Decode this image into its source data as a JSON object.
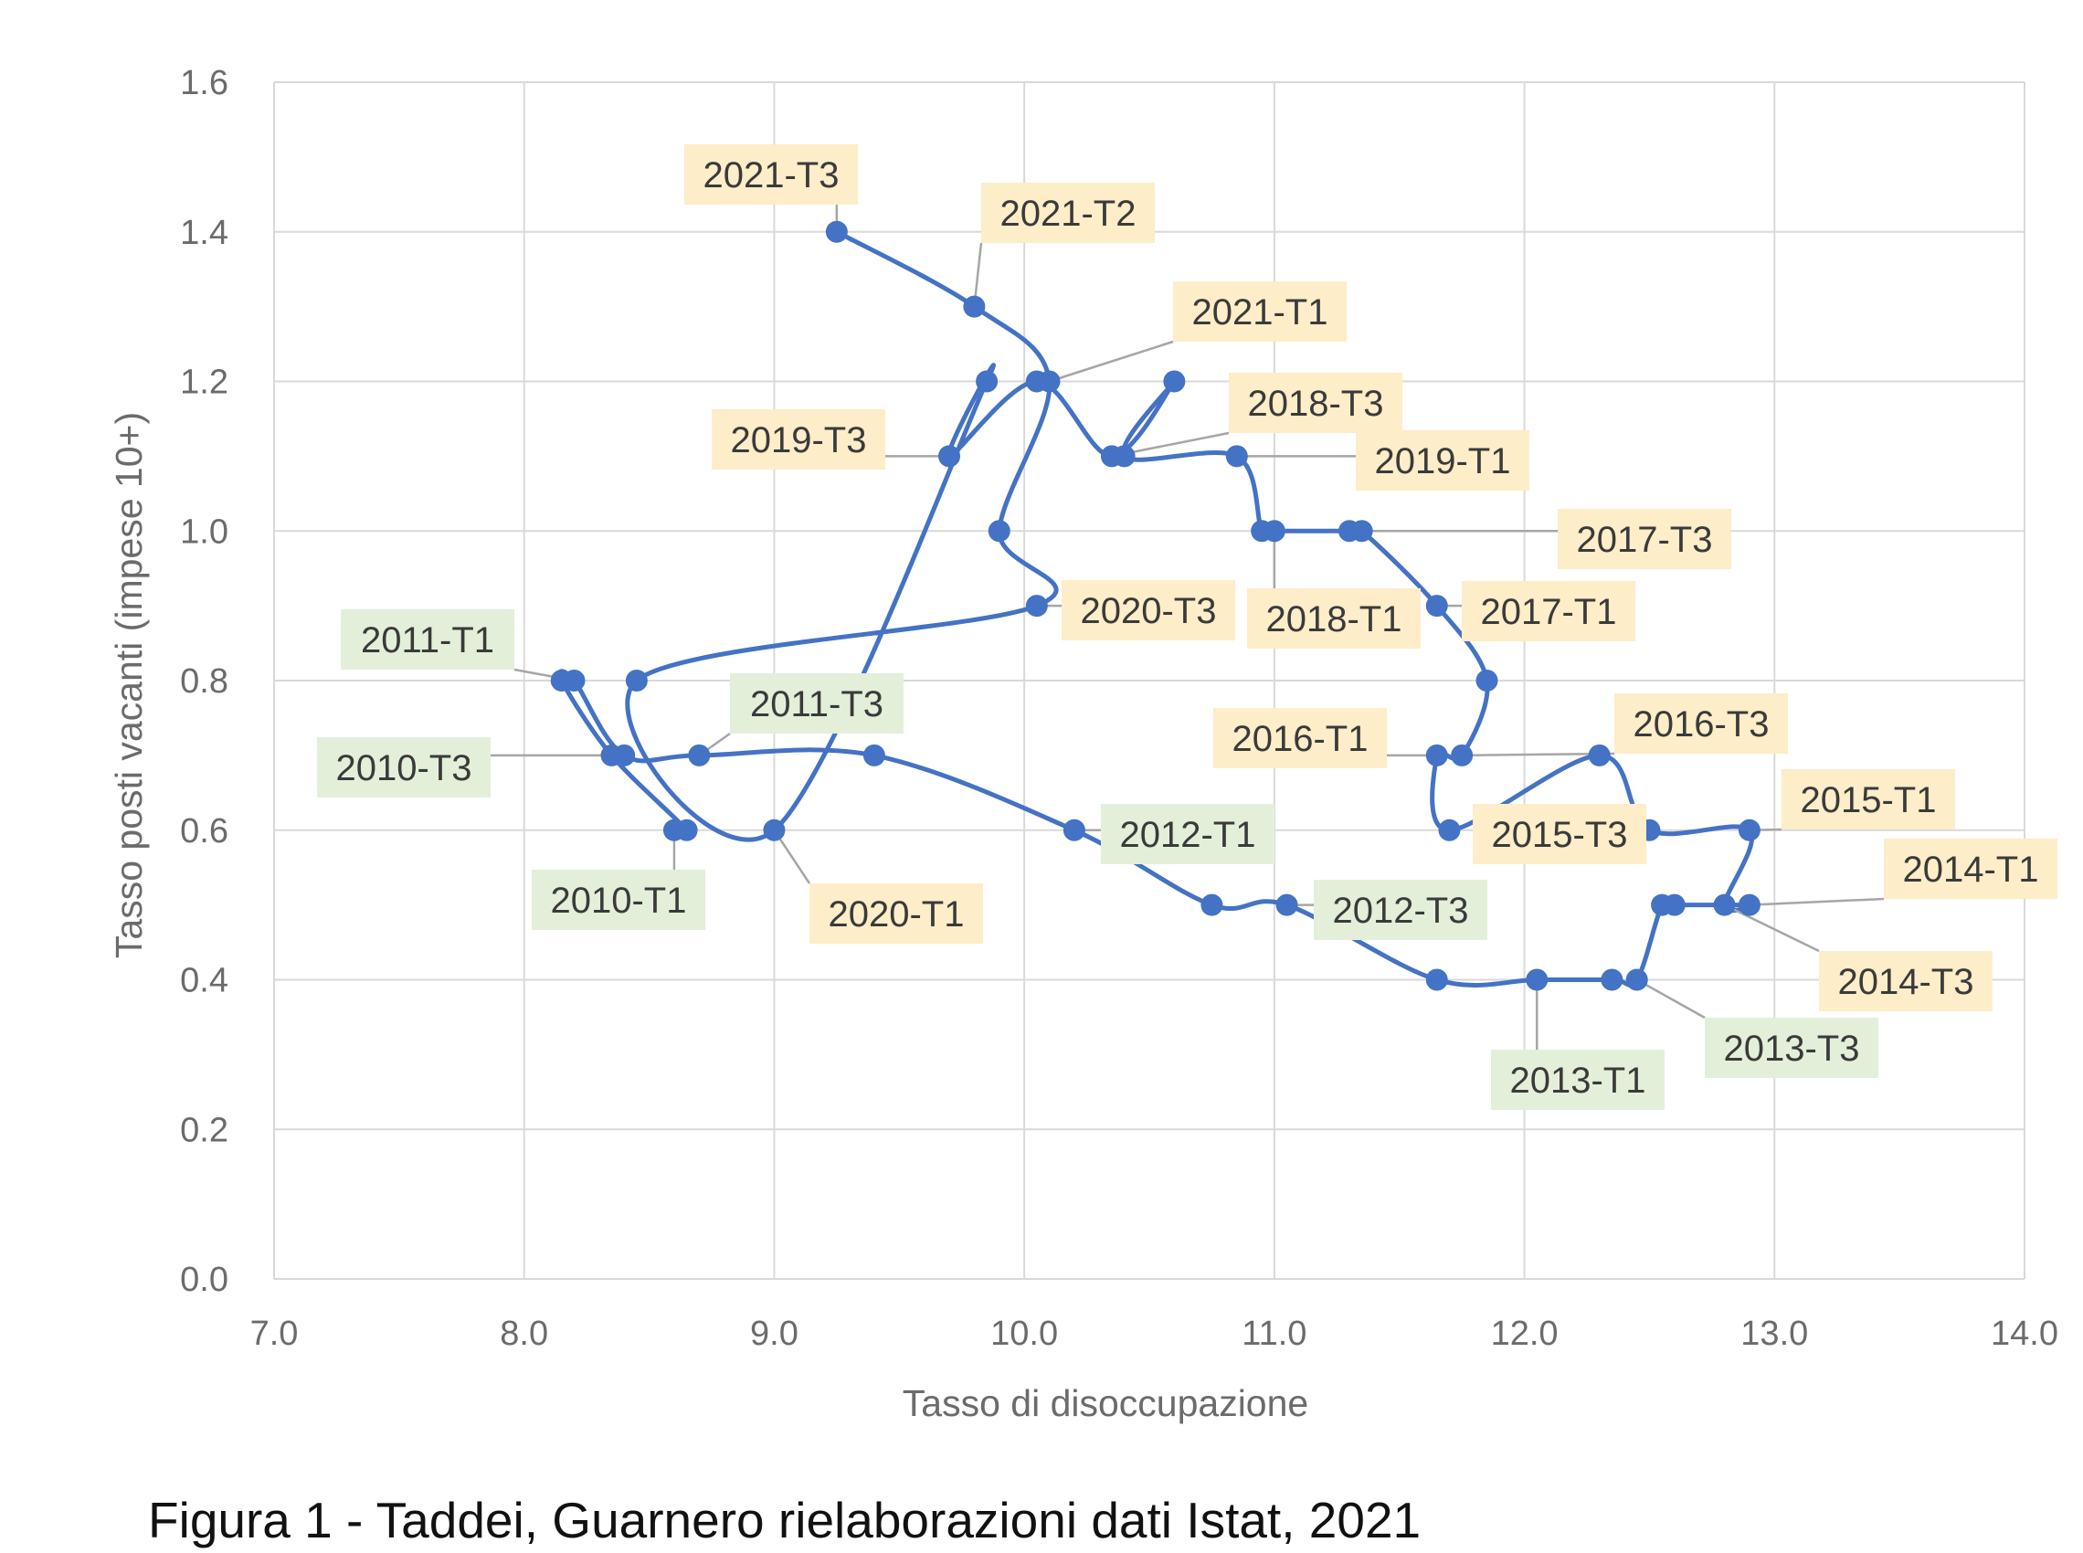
{
  "caption": "Figura 1 - Taddei, Guarnero rielaborazioni dati Istat, 2021",
  "colors": {
    "line": "#4472c4",
    "grid": "#d9d9d9",
    "axis_text": "#6b6b6b",
    "label_bg_yellow": "#fdedc8",
    "label_bg_green": "#e4efd9",
    "leader": "#a6a6a6"
  },
  "chart_data": {
    "type": "line",
    "title": "",
    "xlabel": "Tasso di disoccupazione",
    "ylabel": "Tasso posti vacanti (impese 10+)",
    "xlim": [
      7.0,
      14.0
    ],
    "ylim": [
      0.0,
      1.6
    ],
    "xticks": [
      "7.0",
      "8.0",
      "9.0",
      "10.0",
      "11.0",
      "12.0",
      "13.0",
      "14.0"
    ],
    "yticks": [
      "0.0",
      "0.2",
      "0.4",
      "0.6",
      "0.8",
      "1.0",
      "1.2",
      "1.4",
      "1.6"
    ],
    "grid": true,
    "series": [
      {
        "points": [
          {
            "x": 8.6,
            "y": 0.6,
            "label": "2010-T1",
            "tone": "green"
          },
          {
            "x": 8.65,
            "y": 0.6
          },
          {
            "x": 8.35,
            "y": 0.7,
            "label": "2010-T3",
            "tone": "green"
          },
          {
            "x": 8.15,
            "y": 0.8
          },
          {
            "x": 8.2,
            "y": 0.8,
            "label": "2011-T1",
            "tone": "green"
          },
          {
            "x": 8.4,
            "y": 0.7
          },
          {
            "x": 8.7,
            "y": 0.7,
            "label": "2011-T3",
            "tone": "green"
          },
          {
            "x": 9.4,
            "y": 0.7
          },
          {
            "x": 10.2,
            "y": 0.6,
            "label": "2012-T1",
            "tone": "green"
          },
          {
            "x": 10.75,
            "y": 0.5
          },
          {
            "x": 11.05,
            "y": 0.5,
            "label": "2012-T3",
            "tone": "green"
          },
          {
            "x": 11.65,
            "y": 0.4
          },
          {
            "x": 12.05,
            "y": 0.4,
            "label": "2013-T1",
            "tone": "green"
          },
          {
            "x": 12.35,
            "y": 0.4
          },
          {
            "x": 12.45,
            "y": 0.4,
            "label": "2013-T3",
            "tone": "green"
          },
          {
            "x": 12.55,
            "y": 0.5
          },
          {
            "x": 12.6,
            "y": 0.5
          },
          {
            "x": 12.9,
            "y": 0.5,
            "label": "2014-T1",
            "tone": "yellow"
          },
          {
            "x": 12.8,
            "y": 0.5,
            "label": "2014-T3",
            "tone": "yellow"
          },
          {
            "x": 12.9,
            "y": 0.6,
            "label": "2015-T1",
            "tone": "yellow"
          },
          {
            "x": 12.5,
            "y": 0.6,
            "label": "2015-T3",
            "tone": "yellow"
          },
          {
            "x": 12.3,
            "y": 0.7
          },
          {
            "x": 11.7,
            "y": 0.6
          },
          {
            "x": 11.65,
            "y": 0.7,
            "label": "2016-T1",
            "tone": "yellow"
          },
          {
            "x": 11.75,
            "y": 0.7,
            "label": "2016-T3",
            "tone": "yellow"
          },
          {
            "x": 11.85,
            "y": 0.8
          },
          {
            "x": 11.65,
            "y": 0.9,
            "label": "2017-T1",
            "tone": "yellow"
          },
          {
            "x": 11.35,
            "y": 1.0,
            "label": "2017-T3",
            "tone": "yellow"
          },
          {
            "x": 11.3,
            "y": 1.0
          },
          {
            "x": 11.0,
            "y": 1.0,
            "label": "2018-T1",
            "tone": "yellow"
          },
          {
            "x": 10.95,
            "y": 1.0
          },
          {
            "x": 10.85,
            "y": 1.1,
            "label": "2019-T1",
            "tone": "yellow"
          },
          {
            "x": 10.4,
            "y": 1.1
          },
          {
            "x": 10.6,
            "y": 1.2
          },
          {
            "x": 10.35,
            "y": 1.1,
            "label": "2018-T3",
            "tone": "yellow"
          },
          {
            "x": 10.05,
            "y": 1.2
          },
          {
            "x": 9.7,
            "y": 1.1,
            "label": "2019-T3",
            "tone": "yellow"
          },
          {
            "x": 9.85,
            "y": 1.2
          },
          {
            "x": 9.0,
            "y": 0.6,
            "label": "2020-T1",
            "tone": "yellow"
          },
          {
            "x": 8.45,
            "y": 0.8
          },
          {
            "x": 10.05,
            "y": 0.9,
            "label": "2020-T3",
            "tone": "yellow"
          },
          {
            "x": 9.9,
            "y": 1.0
          },
          {
            "x": 10.1,
            "y": 1.2,
            "label": "2021-T1",
            "tone": "yellow"
          },
          {
            "x": 9.8,
            "y": 1.3,
            "label": "2021-T2",
            "tone": "yellow"
          },
          {
            "x": 9.25,
            "y": 1.4,
            "label": "2021-T3",
            "tone": "yellow"
          }
        ]
      }
    ]
  }
}
